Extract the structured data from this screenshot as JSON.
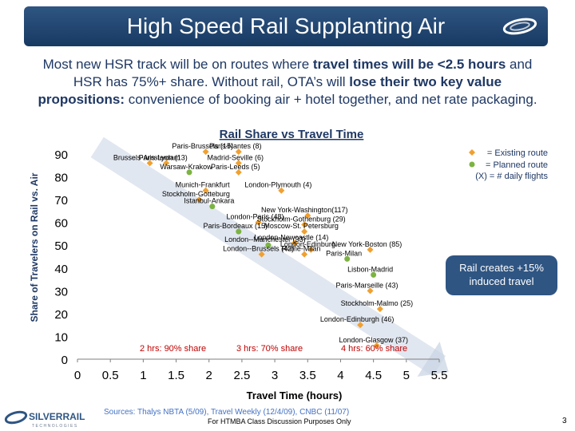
{
  "header": {
    "title": "High Speed Rail Supplanting Air"
  },
  "subtitle": {
    "line1_plain": "Most new HSR track will be on routes where ",
    "line1_bold": "travel times will be <2.5 hours",
    "line1_plain2": " and",
    "line2_plain": "HSR has 75%+ share. Without rail, OTA’s will ",
    "line2_bold": "lose their two key value",
    "line3_bold": "propositions:",
    "line3_plain": " convenience of booking air + hotel together, and net rate packaging."
  },
  "legend": {
    "existing": "= Existing route",
    "planned": "= Planned route",
    "flights": "(X)  = # daily flights"
  },
  "callout": {
    "induced": "Rail creates +15% induced travel"
  },
  "bands": [
    {
      "label": "2 hrs: 90% share"
    },
    {
      "label": "3 hrs: 70% share"
    },
    {
      "label": "4 hrs: 60% share"
    }
  ],
  "chart_data": {
    "type": "scatter",
    "title": "Rail Share vs Travel Time",
    "xlabel": "Travel Time (hours)",
    "ylabel": "Share of Travelers on Rail vs. Air",
    "xlim": [
      0,
      5.5
    ],
    "ylim": [
      0,
      90
    ],
    "xticks": [
      "0",
      "0.5",
      "1",
      "1.5",
      "2",
      "2.5",
      "3",
      "3.5",
      "4",
      "4.5",
      "5",
      "5.5"
    ],
    "yticks": [
      "0",
      "10",
      "20",
      "30",
      "40",
      "50",
      "60",
      "70",
      "80",
      "90"
    ],
    "trend": {
      "x": [
        0.3,
        5.5
      ],
      "y": [
        93,
        -3
      ]
    },
    "colors": {
      "existing": "#f0a030",
      "planned": "#7cb342",
      "trend": "#c8d3e3"
    },
    "points": [
      {
        "label": "Paris-Brussels (15)",
        "x": 1.95,
        "y": 91,
        "type": "existing"
      },
      {
        "label": "Paris-Nantes (8)",
        "x": 2.45,
        "y": 91,
        "type": "existing"
      },
      {
        "label": "Brussels-Amsterdam",
        "x": 1.1,
        "y": 86,
        "type": "existing"
      },
      {
        "label": "Paris-Lyon (13)",
        "x": 1.35,
        "y": 86,
        "type": "existing"
      },
      {
        "label": "Madrid-Seville (6)",
        "x": 2.45,
        "y": 86,
        "type": "existing"
      },
      {
        "label": "Warsaw-Krakow",
        "x": 1.7,
        "y": 82,
        "type": "planned"
      },
      {
        "label": "Paris-Leeds (5)",
        "x": 2.45,
        "y": 82,
        "type": "existing"
      },
      {
        "label": "Munich-Frankfurt",
        "x": 1.95,
        "y": 74,
        "type": "existing"
      },
      {
        "label": "London-Plymouth (4)",
        "x": 3.1,
        "y": 74,
        "type": "existing"
      },
      {
        "label": "Stockholm-Gotteburg",
        "x": 1.85,
        "y": 70,
        "type": "existing"
      },
      {
        "label": "Istanbul-Ankara",
        "x": 2.05,
        "y": 67,
        "type": "planned"
      },
      {
        "label": "New York-Washington(117)",
        "x": 3.5,
        "y": 63,
        "type": "existing"
      },
      {
        "label": "London-Paris (48)",
        "x": 2.75,
        "y": 60,
        "type": "existing"
      },
      {
        "label": "Stockholm-Gothenburg (29)",
        "x": 3.45,
        "y": 59,
        "type": "existing"
      },
      {
        "label": "Moscow-St. Petersburg",
        "x": 3.45,
        "y": 56,
        "type": "existing"
      },
      {
        "label": "Paris-Bordeaux (15)",
        "x": 2.45,
        "y": 56,
        "type": "planned"
      },
      {
        "label": "London-Newcastle (14)",
        "x": 3.3,
        "y": 51,
        "type": "existing"
      },
      {
        "label": "London--Manchester (33)",
        "x": 2.9,
        "y": 50,
        "type": "planned"
      },
      {
        "label": "London-Edinburg",
        "x": 3.55,
        "y": 48,
        "type": "existing"
      },
      {
        "label": "New York-Boston (85)",
        "x": 4.45,
        "y": 48,
        "type": "existing"
      },
      {
        "label": "London--Brussels (42)",
        "x": 2.8,
        "y": 46,
        "type": "existing"
      },
      {
        "label": "Rome-Milan",
        "x": 3.45,
        "y": 46,
        "type": "existing"
      },
      {
        "label": "Paris-Milan",
        "x": 4.1,
        "y": 44,
        "type": "planned"
      },
      {
        "label": "Lisbon-Madrid",
        "x": 4.5,
        "y": 37,
        "type": "planned"
      },
      {
        "label": "Paris-Marseille (43)",
        "x": 4.45,
        "y": 30,
        "type": "existing"
      },
      {
        "label": "Stockholm-Malmo (25)",
        "x": 4.6,
        "y": 22,
        "type": "existing"
      },
      {
        "label": "London-Edinburgh (46)",
        "x": 4.3,
        "y": 15,
        "type": "existing"
      },
      {
        "label": "London-Glasgow (37)",
        "x": 4.55,
        "y": 6,
        "type": "existing"
      }
    ]
  },
  "footer": {
    "logo_name": "SILVERRAIL",
    "logo_tagline": "TECHNOLOGIES",
    "sources": "Sources: Thalys NBTA  (5/09), Travel Weekly  (12/4/09), CNBC (11/07)",
    "notice": "For HTMBA Class Discussion Purposes Only",
    "page_number": "3"
  }
}
